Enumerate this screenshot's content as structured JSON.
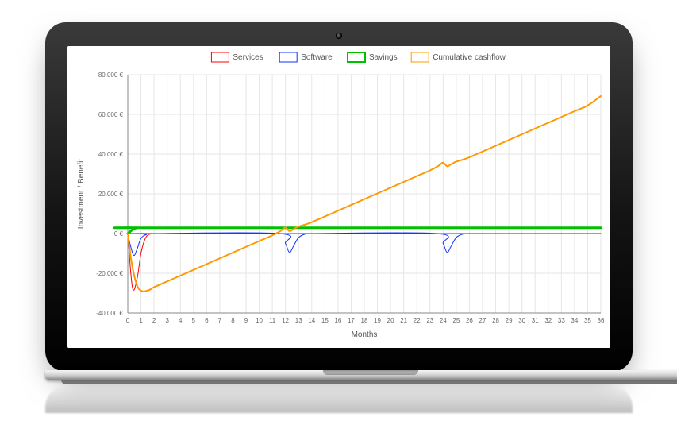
{
  "chart": {
    "type": "line",
    "background_color": "#ffffff",
    "grid_color": "#e6e6e6",
    "axis_color": "#888888",
    "tick_font_size": 8,
    "axis_title_font_size": 10,
    "legend_font_size": 10,
    "x": {
      "label": "Months",
      "min": 0,
      "max": 36,
      "tick_step": 1,
      "ticks": [
        0,
        1,
        2,
        3,
        4,
        5,
        6,
        7,
        8,
        9,
        10,
        11,
        12,
        13,
        14,
        15,
        16,
        17,
        18,
        19,
        20,
        21,
        22,
        23,
        24,
        25,
        26,
        27,
        28,
        29,
        30,
        31,
        32,
        33,
        34,
        35,
        36
      ]
    },
    "y": {
      "label": "Investment / Benefit",
      "min": -40000,
      "max": 80000,
      "tick_step": 20000,
      "ticks": [
        -40000,
        -20000,
        0,
        20000,
        40000,
        60000,
        80000
      ],
      "tick_labels": [
        "-40.000 €",
        "-20.000 €",
        "0 €",
        "20.000 €",
        "40.000 €",
        "60.000 €",
        "80.000 €"
      ]
    },
    "legend": {
      "position": "top",
      "items": [
        "Services",
        "Software",
        "Savings",
        "Cumulative cashflow"
      ]
    },
    "series": [
      {
        "name": "Services",
        "color": "#ff0000",
        "line_width": 1,
        "data": [
          [
            0,
            0
          ],
          [
            0.35,
            -27000
          ],
          [
            0.7,
            -23000
          ],
          [
            1.0,
            -10000
          ],
          [
            1.3,
            -3000
          ],
          [
            1.6,
            -500
          ],
          [
            2,
            0
          ],
          [
            3,
            0
          ],
          [
            36,
            0
          ]
        ]
      },
      {
        "name": "Software",
        "color": "#1030ff",
        "line_width": 1,
        "data": [
          [
            0,
            0
          ],
          [
            0.2,
            -6000
          ],
          [
            0.45,
            -11000
          ],
          [
            0.7,
            -8000
          ],
          [
            1.0,
            -2500
          ],
          [
            1.4,
            -600
          ],
          [
            2,
            0
          ],
          [
            11.5,
            0
          ],
          [
            12.0,
            -5000
          ],
          [
            12.3,
            -9500
          ],
          [
            12.6,
            -6500
          ],
          [
            13.0,
            -2000
          ],
          [
            13.5,
            -300
          ],
          [
            14,
            0
          ],
          [
            23.5,
            0
          ],
          [
            24.0,
            -5000
          ],
          [
            24.3,
            -9500
          ],
          [
            24.6,
            -6500
          ],
          [
            25.0,
            -2000
          ],
          [
            25.5,
            -300
          ],
          [
            26,
            0
          ],
          [
            36,
            0
          ]
        ]
      },
      {
        "name": "Savings",
        "color": "#00c000",
        "line_width": 3,
        "data": [
          [
            0,
            0
          ],
          [
            0.5,
            2500
          ],
          [
            1,
            2900
          ],
          [
            2,
            2900
          ],
          [
            36,
            2900
          ]
        ]
      },
      {
        "name": "Cumulative cashflow",
        "color": "#ff9900",
        "line_width": 2,
        "data": [
          [
            0,
            0
          ],
          [
            0.3,
            -15000
          ],
          [
            0.7,
            -26000
          ],
          [
            1.1,
            -29000
          ],
          [
            1.6,
            -28500
          ],
          [
            2,
            -27000
          ],
          [
            3,
            -24100
          ],
          [
            4,
            -21200
          ],
          [
            5,
            -18300
          ],
          [
            6,
            -15400
          ],
          [
            7,
            -12500
          ],
          [
            8,
            -9600
          ],
          [
            9,
            -6700
          ],
          [
            10,
            -3800
          ],
          [
            11,
            -900
          ],
          [
            11.6,
            1200
          ],
          [
            12.0,
            3000
          ],
          [
            12.3,
            1200
          ],
          [
            12.6,
            2200
          ],
          [
            13.0,
            3500
          ],
          [
            13.5,
            4500
          ],
          [
            14,
            5700
          ],
          [
            15,
            8600
          ],
          [
            16,
            11500
          ],
          [
            17,
            14400
          ],
          [
            18,
            17300
          ],
          [
            19,
            20200
          ],
          [
            20,
            23100
          ],
          [
            21,
            26000
          ],
          [
            22,
            28900
          ],
          [
            23,
            31800
          ],
          [
            23.6,
            33900
          ],
          [
            24.0,
            35700
          ],
          [
            24.3,
            33900
          ],
          [
            24.6,
            34900
          ],
          [
            25.0,
            36200
          ],
          [
            25.5,
            37200
          ],
          [
            26,
            38400
          ],
          [
            27,
            41300
          ],
          [
            28,
            44200
          ],
          [
            29,
            47100
          ],
          [
            30,
            50000
          ],
          [
            31,
            52900
          ],
          [
            32,
            55800
          ],
          [
            33,
            58700
          ],
          [
            34,
            61600
          ],
          [
            35,
            64500
          ],
          [
            36,
            69200
          ]
        ]
      }
    ]
  },
  "frame": {
    "bezel_color": "#1a1a1a",
    "base_color": "#c9c9c9"
  }
}
